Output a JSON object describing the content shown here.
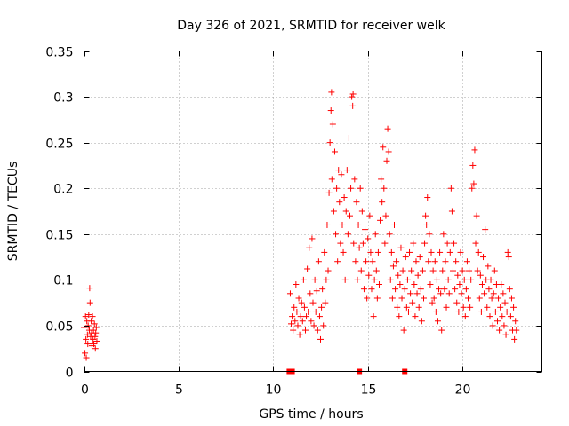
{
  "chart_data": {
    "type": "scatter",
    "title": "Day 326 of 2021, SRMTID for receiver welk",
    "xlabel": "GPS time / hours",
    "ylabel": "SRMTID / TECUs",
    "xlim": [
      0,
      24.2
    ],
    "ylim": [
      0,
      0.35
    ],
    "xticks": [
      0,
      5,
      10,
      15,
      20
    ],
    "xtick_labels": [
      "0",
      "5",
      "10",
      "15",
      "20"
    ],
    "yticks": [
      0,
      0.05,
      0.1,
      0.15,
      0.2,
      0.25,
      0.3,
      0.35
    ],
    "ytick_labels": [
      "0",
      "0.05",
      "0.1",
      "0.15",
      "0.2",
      "0.25",
      "0.3",
      "0.35"
    ],
    "grid": true,
    "marker": "+",
    "color": "#ff0000",
    "series": [
      {
        "name": "SRMTID",
        "points": [
          [
            0.0,
            0.048
          ],
          [
            0.05,
            0.02
          ],
          [
            0.08,
            0.06
          ],
          [
            0.1,
            0.035
          ],
          [
            0.12,
            0.015
          ],
          [
            0.15,
            0.055
          ],
          [
            0.18,
            0.04
          ],
          [
            0.2,
            0.03
          ],
          [
            0.22,
            0.05
          ],
          [
            0.25,
            0.062
          ],
          [
            0.28,
            0.045
          ],
          [
            0.3,
            0.091
          ],
          [
            0.32,
            0.075
          ],
          [
            0.35,
            0.038
          ],
          [
            0.38,
            0.055
          ],
          [
            0.4,
            0.042
          ],
          [
            0.42,
            0.028
          ],
          [
            0.45,
            0.06
          ],
          [
            0.48,
            0.035
          ],
          [
            0.5,
            0.045
          ],
          [
            0.52,
            0.03
          ],
          [
            0.55,
            0.052
          ],
          [
            0.58,
            0.038
          ],
          [
            0.6,
            0.025
          ],
          [
            0.62,
            0.042
          ],
          [
            0.65,
            0.048
          ],
          [
            0.68,
            0.033
          ],
          [
            10.9,
            0.085
          ],
          [
            10.95,
            0.052
          ],
          [
            11.0,
            0.06
          ],
          [
            11.05,
            0.045
          ],
          [
            11.1,
            0.07
          ],
          [
            11.15,
            0.055
          ],
          [
            11.2,
            0.095
          ],
          [
            11.25,
            0.065
          ],
          [
            11.3,
            0.05
          ],
          [
            11.35,
            0.08
          ],
          [
            11.4,
            0.04
          ],
          [
            11.45,
            0.06
          ],
          [
            11.5,
            0.075
          ],
          [
            11.55,
            0.055
          ],
          [
            11.6,
            0.1
          ],
          [
            11.65,
            0.07
          ],
          [
            11.7,
            0.045
          ],
          [
            11.75,
            0.06
          ],
          [
            11.8,
            0.112
          ],
          [
            11.85,
            0.065
          ],
          [
            11.9,
            0.135
          ],
          [
            11.95,
            0.085
          ],
          [
            12.0,
            0.055
          ],
          [
            12.05,
            0.145
          ],
          [
            12.1,
            0.075
          ],
          [
            12.15,
            0.05
          ],
          [
            12.2,
            0.1
          ],
          [
            12.25,
            0.065
          ],
          [
            12.3,
            0.088
          ],
          [
            12.35,
            0.045
          ],
          [
            12.4,
            0.12
          ],
          [
            12.45,
            0.06
          ],
          [
            12.5,
            0.035
          ],
          [
            12.55,
            0.07
          ],
          [
            12.6,
            0.09
          ],
          [
            12.65,
            0.05
          ],
          [
            12.7,
            0.13
          ],
          [
            12.75,
            0.075
          ],
          [
            12.8,
            0.1
          ],
          [
            12.85,
            0.16
          ],
          [
            12.9,
            0.11
          ],
          [
            12.95,
            0.195
          ],
          [
            13.0,
            0.25
          ],
          [
            13.05,
            0.285
          ],
          [
            13.08,
            0.305
          ],
          [
            13.1,
            0.21
          ],
          [
            13.15,
            0.27
          ],
          [
            13.2,
            0.175
          ],
          [
            13.25,
            0.24
          ],
          [
            13.3,
            0.15
          ],
          [
            13.35,
            0.2
          ],
          [
            13.4,
            0.12
          ],
          [
            13.45,
            0.22
          ],
          [
            13.5,
            0.185
          ],
          [
            13.55,
            0.14
          ],
          [
            13.6,
            0.215
          ],
          [
            13.65,
            0.16
          ],
          [
            13.7,
            0.13
          ],
          [
            13.75,
            0.19
          ],
          [
            13.8,
            0.1
          ],
          [
            13.85,
            0.175
          ],
          [
            13.9,
            0.22
          ],
          [
            13.95,
            0.15
          ],
          [
            14.0,
            0.255
          ],
          [
            14.05,
            0.17
          ],
          [
            14.1,
            0.2
          ],
          [
            14.15,
            0.3
          ],
          [
            14.2,
            0.29
          ],
          [
            14.22,
            0.303
          ],
          [
            14.25,
            0.14
          ],
          [
            14.3,
            0.21
          ],
          [
            14.35,
            0.12
          ],
          [
            14.4,
            0.185
          ],
          [
            14.45,
            0.1
          ],
          [
            14.5,
            0.16
          ],
          [
            14.55,
            0.135
          ],
          [
            14.6,
            0.2
          ],
          [
            14.65,
            0.11
          ],
          [
            14.7,
            0.175
          ],
          [
            14.75,
            0.14
          ],
          [
            14.8,
            0.09
          ],
          [
            14.85,
            0.155
          ],
          [
            14.9,
            0.12
          ],
          [
            14.95,
            0.08
          ],
          [
            15.0,
            0.145
          ],
          [
            15.05,
            0.105
          ],
          [
            15.1,
            0.17
          ],
          [
            15.15,
            0.13
          ],
          [
            15.2,
            0.09
          ],
          [
            15.25,
            0.12
          ],
          [
            15.3,
            0.06
          ],
          [
            15.35,
            0.1
          ],
          [
            15.4,
            0.15
          ],
          [
            15.45,
            0.11
          ],
          [
            15.5,
            0.08
          ],
          [
            15.55,
            0.13
          ],
          [
            15.6,
            0.095
          ],
          [
            15.65,
            0.165
          ],
          [
            15.7,
            0.21
          ],
          [
            15.75,
            0.185
          ],
          [
            15.8,
            0.245
          ],
          [
            15.85,
            0.2
          ],
          [
            15.9,
            0.14
          ],
          [
            15.95,
            0.17
          ],
          [
            16.0,
            0.23
          ],
          [
            16.05,
            0.265
          ],
          [
            16.1,
            0.24
          ],
          [
            16.15,
            0.15
          ],
          [
            16.2,
            0.1
          ],
          [
            16.25,
            0.13
          ],
          [
            16.3,
            0.08
          ],
          [
            16.35,
            0.115
          ],
          [
            16.4,
            0.16
          ],
          [
            16.45,
            0.09
          ],
          [
            16.5,
            0.12
          ],
          [
            16.55,
            0.07
          ],
          [
            16.6,
            0.105
          ],
          [
            16.65,
            0.06
          ],
          [
            16.7,
            0.095
          ],
          [
            16.75,
            0.135
          ],
          [
            16.8,
            0.08
          ],
          [
            16.85,
            0.11
          ],
          [
            16.9,
            0.045
          ],
          [
            16.95,
            0.09
          ],
          [
            17.0,
            0.125
          ],
          [
            17.05,
            0.07
          ],
          [
            17.1,
            0.1
          ],
          [
            17.15,
            0.065
          ],
          [
            17.2,
            0.13
          ],
          [
            17.25,
            0.085
          ],
          [
            17.3,
            0.11
          ],
          [
            17.35,
            0.075
          ],
          [
            17.4,
            0.14
          ],
          [
            17.45,
            0.095
          ],
          [
            17.5,
            0.06
          ],
          [
            17.55,
            0.12
          ],
          [
            17.6,
            0.085
          ],
          [
            17.65,
            0.105
          ],
          [
            17.7,
            0.07
          ],
          [
            17.75,
            0.125
          ],
          [
            17.8,
            0.09
          ],
          [
            17.85,
            0.055
          ],
          [
            17.9,
            0.11
          ],
          [
            17.95,
            0.08
          ],
          [
            18.0,
            0.14
          ],
          [
            18.05,
            0.17
          ],
          [
            18.1,
            0.16
          ],
          [
            18.15,
            0.19
          ],
          [
            18.2,
            0.12
          ],
          [
            18.25,
            0.15
          ],
          [
            18.3,
            0.095
          ],
          [
            18.35,
            0.13
          ],
          [
            18.4,
            0.075
          ],
          [
            18.45,
            0.11
          ],
          [
            18.5,
            0.08
          ],
          [
            18.55,
            0.12
          ],
          [
            18.6,
            0.065
          ],
          [
            18.65,
            0.1
          ],
          [
            18.7,
            0.055
          ],
          [
            18.75,
            0.09
          ],
          [
            18.8,
            0.13
          ],
          [
            18.85,
            0.085
          ],
          [
            18.9,
            0.045
          ],
          [
            18.95,
            0.11
          ],
          [
            19.0,
            0.15
          ],
          [
            19.05,
            0.09
          ],
          [
            19.1,
            0.12
          ],
          [
            19.15,
            0.07
          ],
          [
            19.2,
            0.14
          ],
          [
            19.25,
            0.1
          ],
          [
            19.3,
            0.085
          ],
          [
            19.35,
            0.13
          ],
          [
            19.4,
            0.2
          ],
          [
            19.45,
            0.175
          ],
          [
            19.5,
            0.11
          ],
          [
            19.55,
            0.14
          ],
          [
            19.6,
            0.09
          ],
          [
            19.65,
            0.12
          ],
          [
            19.7,
            0.075
          ],
          [
            19.75,
            0.105
          ],
          [
            19.8,
            0.065
          ],
          [
            19.85,
            0.095
          ],
          [
            19.9,
            0.13
          ],
          [
            19.95,
            0.085
          ],
          [
            20.0,
            0.11
          ],
          [
            20.05,
            0.07
          ],
          [
            20.1,
            0.1
          ],
          [
            20.15,
            0.06
          ],
          [
            20.2,
            0.09
          ],
          [
            20.25,
            0.12
          ],
          [
            20.3,
            0.08
          ],
          [
            20.35,
            0.11
          ],
          [
            20.4,
            0.07
          ],
          [
            20.45,
            0.1
          ],
          [
            20.5,
            0.2
          ],
          [
            20.55,
            0.225
          ],
          [
            20.6,
            0.205
          ],
          [
            20.65,
            0.242
          ],
          [
            20.7,
            0.14
          ],
          [
            20.75,
            0.17
          ],
          [
            20.8,
            0.11
          ],
          [
            20.85,
            0.13
          ],
          [
            20.9,
            0.08
          ],
          [
            20.95,
            0.105
          ],
          [
            21.0,
            0.065
          ],
          [
            21.05,
            0.095
          ],
          [
            21.1,
            0.125
          ],
          [
            21.15,
            0.085
          ],
          [
            21.2,
            0.155
          ],
          [
            21.25,
            0.1
          ],
          [
            21.3,
            0.07
          ],
          [
            21.35,
            0.115
          ],
          [
            21.4,
            0.09
          ],
          [
            21.45,
            0.06
          ],
          [
            21.5,
            0.1
          ],
          [
            21.55,
            0.08
          ],
          [
            21.6,
            0.05
          ],
          [
            21.65,
            0.085
          ],
          [
            21.7,
            0.11
          ],
          [
            21.75,
            0.065
          ],
          [
            21.8,
            0.095
          ],
          [
            21.85,
            0.055
          ],
          [
            21.9,
            0.08
          ],
          [
            21.95,
            0.045
          ],
          [
            22.0,
            0.07
          ],
          [
            22.05,
            0.095
          ],
          [
            22.1,
            0.06
          ],
          [
            22.15,
            0.085
          ],
          [
            22.2,
            0.05
          ],
          [
            22.25,
            0.075
          ],
          [
            22.3,
            0.04
          ],
          [
            22.35,
            0.065
          ],
          [
            22.4,
            0.13
          ],
          [
            22.45,
            0.125
          ],
          [
            22.5,
            0.09
          ],
          [
            22.55,
            0.06
          ],
          [
            22.6,
            0.08
          ],
          [
            22.65,
            0.045
          ],
          [
            22.7,
            0.07
          ],
          [
            22.75,
            0.035
          ],
          [
            22.8,
            0.055
          ],
          [
            22.85,
            0.045
          ]
        ]
      }
    ],
    "markers_on_axis": [
      10.85,
      11.0,
      14.55,
      16.95
    ]
  }
}
